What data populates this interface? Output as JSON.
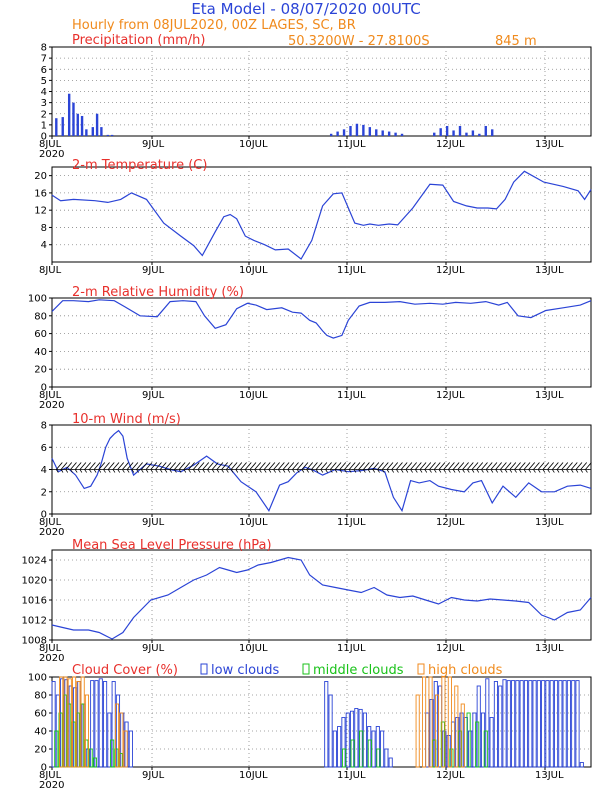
{
  "header": {
    "title": "Eta Model - 08/07/2020 00UTC",
    "subtitle": "Hourly from 08JUL2020, 00Z  LAGES, SC, BR",
    "coords": "50.3200W - 27.8100S",
    "elevation": "845  m"
  },
  "colors": {
    "title": "#2b44d6",
    "orange": "#f08a1c",
    "panel_title": "#e8302c",
    "line": "#2b44d6",
    "low": "#2b44d6",
    "middle": "#19c219",
    "high": "#f08a1c"
  },
  "days": [
    "8JUL",
    "9JUL",
    "10JUL",
    "11JUL",
    "12JUL",
    "13JUL"
  ],
  "year": "2020",
  "chart_data": [
    {
      "type": "bar",
      "title": "Precipitation (mm/h)",
      "ylim": [
        0,
        8
      ],
      "yticks": [
        0,
        1,
        2,
        3,
        4,
        5,
        6,
        7,
        8
      ],
      "x_hours": [
        2,
        5,
        8,
        10,
        12,
        14,
        16,
        19,
        21,
        23,
        26,
        28,
        130,
        133,
        136,
        139,
        142,
        145,
        148,
        151,
        154,
        157,
        160,
        163,
        178,
        181,
        184,
        187,
        190,
        193,
        196,
        199,
        202,
        205
      ],
      "values": [
        1.6,
        1.7,
        3.8,
        3.0,
        2.0,
        1.8,
        0.6,
        0.8,
        2.0,
        0.8,
        0.1,
        0.1,
        0.2,
        0.4,
        0.6,
        0.9,
        1.1,
        1.0,
        0.8,
        0.6,
        0.5,
        0.4,
        0.3,
        0.2,
        0.3,
        0.7,
        0.9,
        0.5,
        0.9,
        0.3,
        0.5,
        0.2,
        0.9,
        0.6
      ]
    },
    {
      "type": "line",
      "title": "2-m Temperature (C)",
      "ylim": [
        0,
        22
      ],
      "yticks": [
        4,
        8,
        12,
        16,
        20
      ],
      "x": [
        0,
        4,
        10,
        20,
        26,
        32,
        37,
        44,
        52,
        60,
        66,
        70,
        76,
        80,
        83,
        86,
        90,
        94,
        99,
        104,
        110,
        116,
        121,
        126,
        131,
        135,
        141,
        145,
        148,
        152,
        157,
        161,
        168,
        176,
        182,
        187,
        193,
        198,
        203,
        207,
        211,
        215,
        220,
        229,
        238,
        245,
        248,
        251
      ],
      "y": [
        15.5,
        14.2,
        14.5,
        14.2,
        13.8,
        14.5,
        16.0,
        14.5,
        9.0,
        6.0,
        3.8,
        1.5,
        7.0,
        10.5,
        11.0,
        10.0,
        6.0,
        5.0,
        4.0,
        2.8,
        3.0,
        0.7,
        5.0,
        13.0,
        15.8,
        16.0,
        9.0,
        8.5,
        8.8,
        8.5,
        8.8,
        8.6,
        12.5,
        18.0,
        17.8,
        14.0,
        13.0,
        12.5,
        12.5,
        12.3,
        14.5,
        18.5,
        21.0,
        18.5,
        17.5,
        16.5,
        14.5,
        16.8
      ]
    },
    {
      "type": "line",
      "title": "2-m Relative Humidity (%)",
      "ylim": [
        0,
        100
      ],
      "yticks": [
        0,
        20,
        40,
        60,
        80,
        100
      ],
      "x": [
        0,
        5,
        10,
        17,
        22,
        29,
        34,
        41,
        49,
        55,
        61,
        67,
        71,
        76,
        81,
        86,
        91,
        95,
        100,
        107,
        112,
        116,
        120,
        123,
        126,
        128,
        131,
        135,
        138,
        143,
        148,
        155,
        162,
        169,
        176,
        182,
        188,
        195,
        202,
        208,
        212,
        217,
        223,
        230,
        238,
        246,
        251
      ],
      "y": [
        85,
        97,
        97,
        96,
        98,
        97,
        90,
        80,
        79,
        96,
        97,
        96,
        80,
        66,
        70,
        88,
        94,
        92,
        87,
        89,
        84,
        83,
        75,
        72,
        63,
        58,
        55,
        58,
        75,
        91,
        95,
        95,
        96,
        93,
        94,
        93,
        95,
        94,
        96,
        92,
        95,
        80,
        78,
        86,
        89,
        92,
        97
      ]
    },
    {
      "type": "line",
      "title": "10-m Wind (m/s)",
      "ylim": [
        0,
        8
      ],
      "yticks": [
        0,
        2,
        4,
        6,
        8
      ],
      "x": [
        0,
        3,
        7,
        11,
        15,
        18,
        21,
        23,
        25,
        27,
        29,
        31,
        33,
        35,
        38,
        44,
        50,
        55,
        60,
        66,
        72,
        77,
        82,
        88,
        95,
        101,
        106,
        110,
        114,
        118,
        122,
        126,
        132,
        138,
        144,
        150,
        155,
        159,
        163,
        167,
        171,
        176,
        180,
        186,
        192,
        196,
        200,
        205,
        210,
        216,
        222,
        228,
        234,
        240,
        246,
        251
      ],
      "y": [
        5.0,
        3.8,
        4.2,
        3.5,
        2.3,
        2.5,
        3.5,
        4.6,
        6.0,
        6.8,
        7.2,
        7.5,
        7.0,
        5.0,
        3.5,
        4.5,
        4.3,
        4.0,
        3.8,
        4.4,
        5.2,
        4.5,
        4.3,
        2.9,
        2.0,
        0.3,
        2.6,
        2.9,
        3.7,
        4.2,
        3.9,
        3.5,
        4.0,
        3.8,
        3.9,
        4.1,
        3.8,
        1.5,
        0.3,
        3.0,
        2.8,
        3.0,
        2.5,
        2.2,
        2.0,
        2.8,
        3.0,
        1.0,
        2.5,
        1.5,
        2.8,
        2.0,
        2.0,
        2.5,
        2.6,
        2.3
      ]
    },
    {
      "type": "line",
      "title": "Mean Sea Level Pressure (hPa)",
      "ylim": [
        1008,
        1026
      ],
      "yticks": [
        1008,
        1012,
        1016,
        1020,
        1024
      ],
      "x": [
        0,
        5,
        10,
        17,
        22,
        28,
        33,
        38,
        46,
        54,
        60,
        66,
        72,
        78,
        82,
        86,
        91,
        96,
        102,
        110,
        116,
        120,
        126,
        132,
        138,
        144,
        150,
        156,
        162,
        168,
        174,
        180,
        186,
        192,
        198,
        204,
        210,
        216,
        222,
        228,
        234,
        240,
        246,
        251
      ],
      "y": [
        1011,
        1010.5,
        1010,
        1010,
        1009.5,
        1008.2,
        1009.5,
        1012.5,
        1016,
        1017,
        1018.5,
        1020,
        1021,
        1022.5,
        1022,
        1021.5,
        1022,
        1023,
        1023.5,
        1024.5,
        1024,
        1021,
        1019,
        1018.5,
        1018,
        1017.5,
        1018.5,
        1017,
        1016.5,
        1016.8,
        1016,
        1015.2,
        1016.5,
        1016,
        1015.8,
        1016.2,
        1016,
        1015.8,
        1015.5,
        1013,
        1012,
        1013.5,
        1014,
        1016.5
      ]
    },
    {
      "type": "bar",
      "title": "Cloud Cover (%)",
      "ylim": [
        0,
        100
      ],
      "yticks": [
        0,
        20,
        40,
        60,
        80,
        100
      ],
      "legend": [
        "low clouds",
        "middle clouds",
        "high clouds"
      ],
      "series": [
        {
          "name": "low clouds",
          "x": [
            1,
            3,
            5,
            7,
            9,
            11,
            13,
            15,
            17,
            19,
            21,
            23,
            25,
            27,
            29,
            31,
            33,
            35,
            37,
            128,
            130,
            132,
            134,
            136,
            138,
            140,
            142,
            144,
            146,
            148,
            150,
            152,
            154,
            156,
            158,
            175,
            177,
            179,
            181,
            183,
            185,
            187,
            189,
            191,
            193,
            195,
            197,
            199,
            201,
            203,
            205,
            207,
            209,
            211,
            213,
            215,
            217,
            219,
            221,
            223,
            225,
            227,
            229,
            231,
            233,
            235,
            237,
            239,
            241,
            243,
            245,
            247
          ],
          "y": [
            95,
            80,
            98,
            97,
            90,
            88,
            95,
            70,
            20,
            96,
            96,
            98,
            95,
            60,
            95,
            80,
            60,
            50,
            40,
            95,
            80,
            40,
            45,
            55,
            60,
            62,
            65,
            64,
            60,
            45,
            40,
            45,
            40,
            20,
            10,
            60,
            75,
            95,
            90,
            40,
            35,
            50,
            55,
            60,
            55,
            40,
            60,
            90,
            60,
            98,
            55,
            95,
            90,
            97,
            96,
            96,
            96,
            96,
            96,
            96,
            96,
            96,
            96,
            96,
            96,
            96,
            96,
            96,
            96,
            96,
            96,
            5
          ]
        },
        {
          "name": "middle clouds",
          "x": [
            2,
            4,
            6,
            8,
            10,
            12,
            14,
            16,
            18,
            20,
            28,
            30,
            32,
            136,
            140,
            144,
            148,
            152,
            178,
            182,
            186,
            190,
            194,
            198,
            202
          ],
          "y": [
            40,
            60,
            80,
            70,
            50,
            60,
            70,
            30,
            20,
            10,
            30,
            20,
            15,
            20,
            30,
            40,
            30,
            20,
            30,
            50,
            20,
            40,
            60,
            50,
            40
          ]
        },
        {
          "name": "high clouds",
          "x": [
            4,
            6,
            8,
            10,
            12,
            14,
            16,
            30,
            32,
            34,
            170,
            173,
            176,
            179,
            182,
            185,
            188,
            191
          ],
          "y": [
            100,
            100,
            98,
            100,
            95,
            100,
            80,
            70,
            60,
            40,
            80,
            100,
            100,
            80,
            100,
            100,
            90,
            70
          ]
        }
      ]
    }
  ]
}
